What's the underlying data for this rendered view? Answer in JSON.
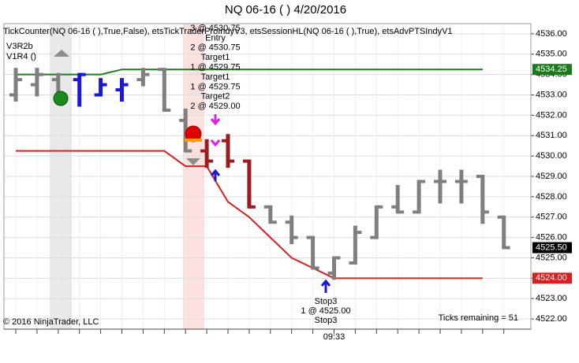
{
  "chart_data": {
    "type": "ohlc",
    "title": "NQ 06-16 (          )  4/20/2016",
    "indicator_label": "TickCounter(NQ 06-16 (          ),True,False), etsTickTraderProIndyV3, etsSessionHL(NQ 06-16 (          ),True), etsAdvPTSIndyV1",
    "strategy_labels": [
      "V3R2b",
      "V1R4 ()"
    ],
    "copyright": "© 2016 NinjaTrader, LLC",
    "ticks_remaining": "Ticks remaining = 51",
    "trade_labels": [
      "3 @ 4530.75",
      "Entry",
      "2 @ 4530.75",
      "Target1",
      "1 @ 4529.75",
      "Target1",
      "1 @ 4529.75",
      "Target2",
      "2 @ 4529.00"
    ],
    "stop_labels": [
      "Stop3",
      "1 @ 4525.00",
      "Stop3"
    ],
    "categories": [
      null,
      null,
      null,
      null,
      null,
      null,
      null,
      null,
      null,
      null,
      null,
      null,
      null,
      null,
      null,
      "09:33",
      null,
      null,
      null,
      null,
      null,
      null,
      null,
      null
    ],
    "open": [
      4533.0,
      4533.5,
      4533.75,
      4533.75,
      4533.0,
      4533.25,
      4533.75,
      4534.25,
      4531.75,
      4530.25,
      4530.75,
      4529.75,
      4527.5,
      4526.75,
      4526.0,
      4524.25,
      4524.75,
      4526.0,
      4527.5,
      4527.25,
      4528.75,
      4528.75,
      4529.0,
      4527.0
    ],
    "high": [
      4534.25,
      4534.25,
      4534.0,
      4534.0,
      4533.75,
      4533.75,
      4534.25,
      4534.25,
      4532.25,
      4530.75,
      4531.0,
      4529.75,
      4527.5,
      4527.0,
      4526.0,
      4525.0,
      4526.5,
      4527.5,
      4528.5,
      4528.75,
      4529.25,
      4529.25,
      4529.0,
      4527.0
    ],
    "low": [
      4532.75,
      4533.0,
      4532.75,
      4532.5,
      4533.0,
      4532.75,
      4533.5,
      4532.25,
      4530.25,
      4529.5,
      4529.5,
      4527.5,
      4526.75,
      4525.75,
      4524.5,
      4524.0,
      4524.75,
      4526.0,
      4527.25,
      4527.25,
      4527.75,
      4527.75,
      4526.75,
      4525.5
    ],
    "close": [
      4533.75,
      4534.0,
      4533.0,
      4534.0,
      4533.5,
      4533.5,
      4534.0,
      4532.25,
      4530.25,
      4529.75,
      4529.75,
      4527.5,
      4526.75,
      4526.0,
      4524.5,
      4525.0,
      4526.25,
      4527.5,
      4527.25,
      4528.75,
      4528.75,
      4528.75,
      4527.25,
      4525.5
    ],
    "colors": [
      "#7f7f7f",
      "#7f7f7f",
      "#7f7f7f",
      "#1a1ad6",
      "#1a1ad6",
      "#1a1ad6",
      "#7f7f7f",
      "#7f7f7f",
      "#7f7f7f",
      "#9b1c1c",
      "#9b1c1c",
      "#9b1c1c",
      "#7f7f7f",
      "#7f7f7f",
      "#7f7f7f",
      "#7f7f7f",
      "#7f7f7f",
      "#7f7f7f",
      "#7f7f7f",
      "#7f7f7f",
      "#7f7f7f",
      "#7f7f7f",
      "#7f7f7f",
      "#7f7f7f"
    ],
    "series": [
      {
        "color": "#1c7a1c",
        "values": [
          4534.0,
          4534.0,
          4534.0,
          4534.0,
          4534.0,
          4534.25,
          4534.25,
          4534.25,
          4534.25,
          4534.25,
          4534.25,
          4534.25,
          4534.25,
          4534.25,
          4534.25,
          4534.25,
          4534.25,
          4534.25,
          4534.25,
          4534.25,
          4534.25,
          4534.25,
          4534.25,
          null
        ]
      },
      {
        "color": "#d42020",
        "values": [
          4530.25,
          4530.25,
          4530.25,
          4530.25,
          4530.25,
          4530.25,
          4530.25,
          4530.25,
          4529.5,
          4529.5,
          4527.75,
          4527.0,
          4526.0,
          4525.0,
          4524.5,
          4524.0,
          4524.0,
          4524.0,
          4524.0,
          4524.0,
          4524.0,
          4524.0,
          4524.0,
          null
        ]
      }
    ],
    "price_markers": [
      {
        "value": 4534.25,
        "label": "4534.25",
        "color": "#1c7a1c"
      },
      {
        "value": 4525.5,
        "label": "4525.50",
        "color": "#000000"
      },
      {
        "value": 4524.0,
        "label": "4524.00",
        "color": "#d42020"
      }
    ],
    "ylim": [
      4521.5,
      4536.5
    ],
    "yticks": [
      {
        "value": 4522,
        "label": "4522.00"
      },
      {
        "value": 4523,
        "label": "4523.00"
      },
      {
        "value": 4524,
        "label": "4524.00"
      },
      {
        "value": 4525,
        "label": "4525.00"
      },
      {
        "value": 4526,
        "label": "4526.00"
      },
      {
        "value": 4527,
        "label": "4527.00"
      },
      {
        "value": 4528,
        "label": "4528.00"
      },
      {
        "value": 4529,
        "label": "4529.00"
      },
      {
        "value": 4530,
        "label": "4530.00"
      },
      {
        "value": 4531,
        "label": "4531.00"
      },
      {
        "value": 4532,
        "label": "4532.00"
      },
      {
        "value": 4533,
        "label": "4533.00"
      },
      {
        "value": 4534,
        "label": "4534.00"
      },
      {
        "value": 4535,
        "label": "4535.00"
      },
      {
        "value": 4536,
        "label": "4536.00"
      }
    ],
    "grid": true
  }
}
